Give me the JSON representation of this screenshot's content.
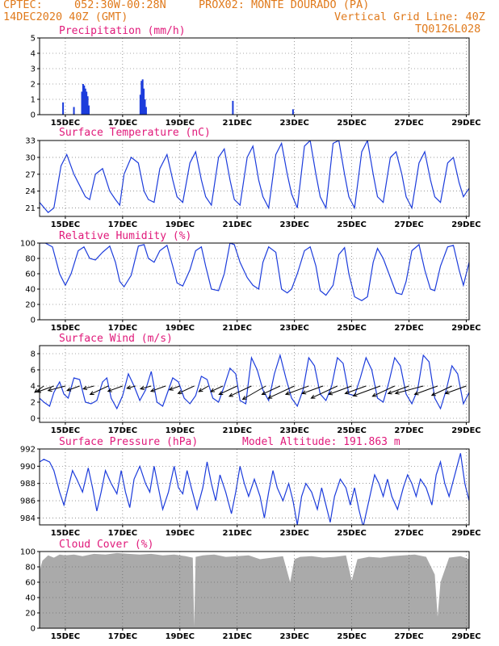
{
  "header": {
    "source": "CPTEC:",
    "coords": "052:30W-00:28N",
    "station": "PROX02: MONTE DOURADO (PA)",
    "date": "14DEC2020 40Z (GMT)",
    "grid_note": "Vertical Grid Line: 40Z",
    "run_id": "TQ0126L028"
  },
  "colors": {
    "title": "#e0197a",
    "header": "#e07a1c",
    "series": "#1c3cdc",
    "cloud": "#aaaaaa"
  },
  "x_axis": {
    "tick_labels": [
      "15DEC",
      "17DEC",
      "19DEC",
      "21DEC",
      "23DEC",
      "25DEC",
      "27DEC",
      "29DEC"
    ],
    "tick_days": [
      15,
      17,
      19,
      21,
      23,
      25,
      27,
      29
    ],
    "range_days": [
      14.1,
      29.1
    ]
  },
  "chart_data": [
    {
      "type": "bar",
      "title": "Precipitation (mm/h)",
      "ylim": [
        0,
        5
      ],
      "yticks": [
        0,
        1,
        2,
        3,
        4,
        5
      ],
      "days": [
        14.92,
        15.3,
        15.58,
        15.62,
        15.66,
        15.7,
        15.74,
        15.78,
        15.82,
        17.62,
        17.66,
        17.7,
        17.74,
        17.78,
        17.82,
        20.85,
        22.95
      ],
      "values": [
        0.8,
        0.5,
        1.5,
        2.0,
        1.9,
        1.7,
        1.5,
        1.2,
        0.6,
        1.3,
        2.2,
        2.3,
        1.7,
        1.0,
        0.5,
        0.9,
        0.35
      ]
    },
    {
      "type": "line",
      "title": "Surface Temperature (nC)",
      "ylim": [
        19.5,
        33
      ],
      "yticks": [
        21,
        24,
        27,
        30,
        33
      ],
      "x": [
        14.1,
        14.4,
        14.6,
        14.85,
        15.05,
        15.3,
        15.55,
        15.7,
        15.85,
        16.05,
        16.3,
        16.55,
        16.75,
        16.9,
        17.05,
        17.3,
        17.55,
        17.75,
        17.9,
        18.1,
        18.3,
        18.55,
        18.75,
        18.9,
        19.1,
        19.35,
        19.55,
        19.75,
        19.9,
        20.1,
        20.35,
        20.55,
        20.75,
        20.9,
        21.1,
        21.35,
        21.55,
        21.75,
        21.9,
        22.1,
        22.35,
        22.55,
        22.75,
        22.9,
        23.1,
        23.35,
        23.55,
        23.75,
        23.9,
        24.1,
        24.35,
        24.55,
        24.75,
        24.9,
        25.1,
        25.35,
        25.55,
        25.75,
        25.9,
        26.1,
        26.35,
        26.55,
        26.75,
        26.9,
        27.1,
        27.35,
        27.55,
        27.75,
        27.9,
        28.1,
        28.35,
        28.55,
        28.75,
        28.9,
        29.1
      ],
      "values": [
        22,
        20.2,
        21,
        28.5,
        30.5,
        27,
        24.5,
        23,
        22.5,
        27,
        28,
        24,
        22.5,
        21.5,
        27,
        30,
        29,
        24,
        22.5,
        22,
        28,
        30.5,
        26,
        23,
        22,
        29,
        31,
        26,
        23,
        21.5,
        30,
        31.5,
        26,
        22.5,
        21.5,
        30,
        32,
        26,
        23,
        21,
        30.5,
        32.5,
        27,
        23.5,
        21,
        32,
        33,
        27,
        23,
        21,
        32.5,
        33,
        27,
        23,
        21,
        31,
        33,
        27,
        23,
        22,
        30,
        31,
        27,
        23,
        21,
        29,
        31,
        26,
        23,
        22,
        29,
        30,
        25.5,
        23,
        24.5
      ]
    },
    {
      "type": "line",
      "title": "Relative Humidity (%)",
      "ylim": [
        0,
        100
      ],
      "yticks": [
        0,
        20,
        40,
        60,
        80,
        100
      ],
      "x": [
        14.1,
        14.3,
        14.55,
        14.8,
        15.0,
        15.2,
        15.45,
        15.65,
        15.85,
        16.05,
        16.3,
        16.55,
        16.75,
        16.9,
        17.05,
        17.3,
        17.55,
        17.75,
        17.9,
        18.1,
        18.3,
        18.55,
        18.75,
        18.9,
        19.1,
        19.35,
        19.55,
        19.75,
        19.9,
        20.1,
        20.35,
        20.55,
        20.75,
        20.9,
        21.1,
        21.35,
        21.55,
        21.75,
        21.9,
        22.1,
        22.35,
        22.55,
        22.75,
        22.9,
        23.1,
        23.35,
        23.55,
        23.75,
        23.9,
        24.1,
        24.35,
        24.55,
        24.75,
        24.9,
        25.1,
        25.35,
        25.55,
        25.75,
        25.9,
        26.1,
        26.35,
        26.55,
        26.75,
        26.9,
        27.1,
        27.35,
        27.55,
        27.75,
        27.9,
        28.1,
        28.35,
        28.55,
        28.75,
        28.9,
        29.1
      ],
      "values": [
        100,
        100,
        95,
        60,
        45,
        60,
        90,
        95,
        80,
        78,
        88,
        96,
        75,
        50,
        43,
        58,
        96,
        98,
        80,
        75,
        90,
        97,
        70,
        48,
        44,
        65,
        90,
        95,
        70,
        40,
        38,
        60,
        100,
        98,
        75,
        55,
        45,
        40,
        75,
        95,
        88,
        40,
        35,
        40,
        60,
        90,
        95,
        70,
        38,
        32,
        45,
        85,
        94,
        60,
        30,
        25,
        30,
        75,
        93,
        80,
        55,
        35,
        33,
        50,
        90,
        98,
        65,
        40,
        38,
        70,
        95,
        97,
        65,
        45,
        75
      ]
    },
    {
      "type": "line",
      "title": "Surface Wind (m/s)",
      "ylim": [
        -0.5,
        9
      ],
      "yticks": [
        0,
        2,
        4,
        6,
        8
      ],
      "x": [
        14.1,
        14.25,
        14.45,
        14.6,
        14.8,
        14.95,
        15.1,
        15.3,
        15.5,
        15.7,
        15.9,
        16.1,
        16.3,
        16.45,
        16.6,
        16.8,
        17.0,
        17.2,
        17.4,
        17.6,
        17.8,
        18.0,
        18.2,
        18.4,
        18.55,
        18.75,
        18.95,
        19.15,
        19.35,
        19.55,
        19.75,
        19.95,
        20.15,
        20.35,
        20.55,
        20.75,
        20.95,
        21.1,
        21.3,
        21.5,
        21.7,
        21.9,
        22.1,
        22.3,
        22.5,
        22.7,
        22.9,
        23.1,
        23.3,
        23.5,
        23.7,
        23.9,
        24.1,
        24.3,
        24.5,
        24.7,
        24.9,
        25.1,
        25.3,
        25.5,
        25.7,
        25.9,
        26.1,
        26.3,
        26.5,
        26.7,
        26.9,
        27.1,
        27.3,
        27.5,
        27.7,
        27.9,
        28.1,
        28.3,
        28.5,
        28.7,
        28.9,
        29.1
      ],
      "values": [
        2.5,
        2.0,
        1.5,
        3.2,
        4.5,
        3.0,
        2.5,
        5.0,
        4.8,
        2.0,
        1.8,
        2.2,
        4.5,
        5.0,
        2.5,
        1.2,
        2.8,
        5.5,
        4.0,
        2.2,
        3.5,
        5.8,
        2.0,
        1.5,
        3.0,
        5.0,
        4.5,
        2.5,
        1.8,
        2.8,
        5.2,
        4.8,
        2.5,
        2.0,
        4.0,
        6.2,
        5.5,
        2.2,
        1.8,
        7.5,
        6.0,
        3.5,
        2.2,
        5.5,
        7.8,
        5.0,
        2.5,
        1.5,
        3.5,
        7.5,
        6.5,
        3.0,
        2.2,
        4.0,
        7.5,
        6.8,
        3.0,
        2.8,
        5.0,
        7.5,
        6.0,
        2.5,
        2.0,
        4.5,
        7.5,
        6.5,
        3.0,
        1.8,
        3.5,
        7.8,
        7.0,
        2.5,
        1.2,
        3.5,
        6.5,
        5.5,
        1.8,
        3.2
      ]
    },
    {
      "type": "line",
      "title": "Surface Pressure (hPa)",
      "annotation": "Model Altitude: 191.863 m",
      "ylim": [
        983.2,
        992
      ],
      "yticks": [
        984,
        986,
        988,
        990,
        992
      ],
      "x": [
        14.1,
        14.25,
        14.45,
        14.6,
        14.8,
        14.95,
        15.1,
        15.25,
        15.4,
        15.6,
        15.8,
        15.95,
        16.1,
        16.25,
        16.4,
        16.6,
        16.8,
        16.95,
        17.1,
        17.25,
        17.4,
        17.6,
        17.8,
        17.95,
        18.1,
        18.25,
        18.4,
        18.6,
        18.8,
        18.95,
        19.1,
        19.25,
        19.4,
        19.6,
        19.8,
        19.95,
        20.1,
        20.25,
        20.4,
        20.6,
        20.8,
        20.95,
        21.1,
        21.25,
        21.4,
        21.6,
        21.8,
        21.95,
        22.1,
        22.25,
        22.4,
        22.6,
        22.8,
        22.95,
        23.1,
        23.25,
        23.4,
        23.6,
        23.8,
        23.95,
        24.1,
        24.25,
        24.4,
        24.6,
        24.8,
        24.95,
        25.1,
        25.25,
        25.4,
        25.6,
        25.8,
        25.95,
        26.1,
        26.25,
        26.4,
        26.6,
        26.8,
        26.95,
        27.1,
        27.25,
        27.4,
        27.6,
        27.8,
        27.95,
        28.1,
        28.25,
        28.4,
        28.6,
        28.8,
        28.95,
        29.1
      ],
      "values": [
        990.5,
        990.8,
        990.5,
        989.5,
        987.0,
        985.5,
        987.5,
        989.5,
        988.5,
        987.0,
        989.8,
        987.5,
        984.8,
        987.0,
        989.5,
        988.0,
        986.8,
        989.5,
        987.0,
        985.2,
        988.5,
        990.0,
        988.0,
        987.0,
        990.0,
        987.5,
        985.0,
        987.0,
        990.0,
        987.5,
        986.8,
        989.5,
        987.5,
        985.0,
        987.5,
        990.5,
        988.0,
        986.0,
        989.0,
        987.0,
        984.5,
        987.0,
        990.0,
        988.0,
        986.5,
        988.5,
        986.5,
        984.0,
        987.0,
        989.5,
        987.5,
        986.0,
        988.0,
        986.0,
        983.2,
        986.5,
        988.0,
        987.0,
        985.0,
        987.5,
        985.5,
        983.5,
        986.5,
        988.5,
        987.5,
        985.5,
        987.5,
        985.0,
        983.0,
        986.0,
        989.0,
        988.0,
        986.5,
        988.5,
        986.5,
        985.0,
        987.5,
        989.0,
        988.0,
        986.5,
        988.5,
        987.5,
        985.5,
        989.0,
        990.5,
        988.0,
        986.5,
        989.0,
        991.5,
        988.0,
        986.0
      ]
    },
    {
      "type": "area",
      "title": "Cloud Cover (%)",
      "ylim": [
        0,
        100
      ],
      "yticks": [
        0,
        20,
        40,
        60,
        80,
        100
      ],
      "x": [
        14.1,
        14.2,
        14.4,
        14.6,
        14.8,
        15.0,
        15.3,
        15.6,
        16.0,
        16.4,
        16.8,
        17.2,
        17.6,
        18.0,
        18.4,
        18.8,
        19.2,
        19.45,
        19.5,
        19.55,
        19.8,
        20.2,
        20.6,
        21.0,
        21.4,
        21.8,
        22.2,
        22.6,
        22.85,
        23.0,
        23.2,
        23.6,
        24.0,
        24.4,
        24.8,
        25.0,
        25.2,
        25.6,
        26.0,
        26.4,
        26.8,
        27.2,
        27.6,
        27.9,
        28.0,
        28.1,
        28.4,
        28.8,
        29.1
      ],
      "values": [
        75,
        88,
        95,
        92,
        96,
        95,
        96,
        94,
        97,
        96,
        98,
        97,
        96,
        97,
        95,
        96,
        94,
        92,
        2,
        93,
        95,
        96,
        93,
        94,
        95,
        90,
        92,
        94,
        60,
        90,
        93,
        94,
        92,
        93,
        95,
        62,
        90,
        93,
        92,
        94,
        95,
        96,
        93,
        70,
        15,
        60,
        92,
        94,
        90
      ]
    }
  ],
  "wind_arrows": {
    "days": [
      14.25,
      14.6,
      15.0,
      15.5,
      16.0,
      16.5,
      17.0,
      17.45,
      18.0,
      18.5,
      19.0,
      19.5,
      20.0,
      20.5,
      21.0,
      21.5,
      22.0,
      22.5,
      23.0,
      23.5,
      24.0,
      24.5,
      25.0,
      25.5,
      26.0,
      26.5,
      27.0,
      27.5,
      28.0,
      28.5,
      29.0
    ],
    "lengths": [
      2.5,
      4.0,
      4.0,
      3.0,
      2.5,
      4.5,
      3.5,
      2.0,
      2.5,
      3.5,
      2.5,
      4.0,
      2.5,
      3.0,
      4.5,
      5.5,
      6.0,
      4.5,
      6.5,
      5.5,
      5.0,
      6.5,
      5.5,
      5.0,
      6.5,
      5.5,
      5.0,
      6.5,
      5.5,
      5.0,
      5.0
    ],
    "directions_deg": [
      35,
      20,
      15,
      20,
      15,
      25,
      20,
      15,
      15,
      20,
      20,
      25,
      30,
      25,
      25,
      25,
      30,
      25,
      25,
      20,
      20,
      25,
      20,
      20,
      20,
      25,
      20,
      15,
      20,
      25,
      20
    ]
  }
}
